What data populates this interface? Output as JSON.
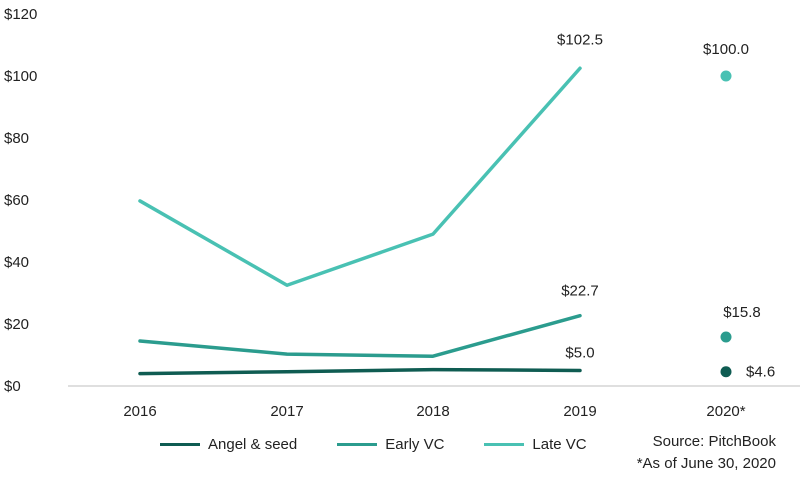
{
  "chart_data": {
    "type": "line",
    "categories": [
      "2016",
      "2017",
      "2018",
      "2019",
      "2020*"
    ],
    "ylim": [
      0,
      120
    ],
    "yticks": [
      0,
      20,
      40,
      60,
      80,
      100,
      120
    ],
    "ytick_labels": [
      "$0",
      "$20",
      "$40",
      "$60",
      "$80",
      "$100",
      "$120"
    ],
    "series": [
      {
        "name": "Angel & seed",
        "color": "#0f5c52",
        "values": [
          4.0,
          4.6,
          5.3,
          5.0,
          4.6
        ]
      },
      {
        "name": "Early VC",
        "color": "#2b9c8e",
        "values": [
          14.5,
          10.3,
          9.6,
          22.7,
          15.8
        ]
      },
      {
        "name": "Late VC",
        "color": "#49c1b3",
        "values": [
          59.7,
          32.5,
          49.0,
          102.5,
          100.0
        ]
      }
    ],
    "data_labels": [
      {
        "series": 2,
        "index": 3,
        "text": "$102.5"
      },
      {
        "series": 2,
        "index": 4,
        "text": "$100.0"
      },
      {
        "series": 1,
        "index": 3,
        "text": "$22.7"
      },
      {
        "series": 1,
        "index": 4,
        "text": "$15.8"
      },
      {
        "series": 0,
        "index": 3,
        "text": "$5.0"
      },
      {
        "series": 0,
        "index": 4,
        "text": "$4.6"
      }
    ],
    "legend_position": "bottom"
  },
  "footer": {
    "source": "Source: PitchBook",
    "note": "*As of June 30, 2020"
  }
}
